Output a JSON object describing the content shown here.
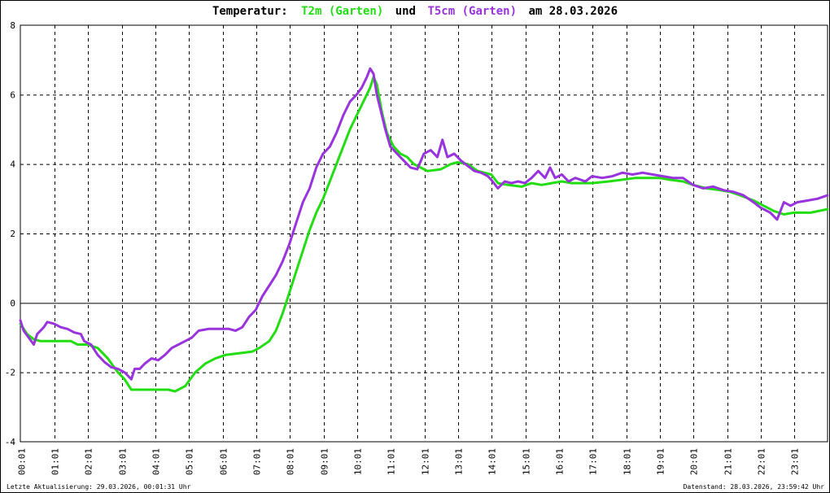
{
  "chart_data": {
    "type": "line",
    "title": {
      "prefix": "Temperatur:",
      "series1": "T2m (Garten)",
      "connector": "und",
      "series2": "T5cm (Garten)",
      "suffix": "am 28.03.2026"
    },
    "xlabel": "",
    "ylabel": "",
    "ylim": [
      -4,
      8
    ],
    "y_ticks": [
      -4,
      -2,
      0,
      2,
      4,
      6,
      8
    ],
    "x_range_hours": [
      0,
      24
    ],
    "x_ticks": [
      "00:01",
      "01:01",
      "02:01",
      "03:01",
      "04:01",
      "05:01",
      "06:01",
      "07:01",
      "08:01",
      "09:01",
      "10:01",
      "11:01",
      "12:01",
      "13:01",
      "14:01",
      "15:01",
      "16:01",
      "17:01",
      "18:01",
      "19:01",
      "20:01",
      "21:01",
      "22:01",
      "23:01"
    ],
    "grid": true,
    "colors": {
      "t2m": "#22dd11",
      "t5cm": "#9933dd",
      "grid": "#000000",
      "zero_line": "#000000"
    },
    "series": [
      {
        "name": "T2m (Garten)",
        "color": "#22dd11",
        "points": [
          [
            0.0,
            -0.6
          ],
          [
            0.2,
            -0.9
          ],
          [
            0.4,
            -1.05
          ],
          [
            0.6,
            -1.1
          ],
          [
            0.8,
            -1.1
          ],
          [
            1.0,
            -1.1
          ],
          [
            1.5,
            -1.1
          ],
          [
            1.7,
            -1.2
          ],
          [
            2.0,
            -1.2
          ],
          [
            2.3,
            -1.3
          ],
          [
            2.6,
            -1.6
          ],
          [
            2.9,
            -2.0
          ],
          [
            3.1,
            -2.2
          ],
          [
            3.3,
            -2.5
          ],
          [
            3.6,
            -2.5
          ],
          [
            4.0,
            -2.5
          ],
          [
            4.4,
            -2.5
          ],
          [
            4.6,
            -2.55
          ],
          [
            4.9,
            -2.4
          ],
          [
            5.2,
            -2.0
          ],
          [
            5.5,
            -1.75
          ],
          [
            5.8,
            -1.6
          ],
          [
            6.1,
            -1.5
          ],
          [
            6.5,
            -1.45
          ],
          [
            6.9,
            -1.4
          ],
          [
            7.1,
            -1.3
          ],
          [
            7.4,
            -1.1
          ],
          [
            7.6,
            -0.8
          ],
          [
            7.8,
            -0.3
          ],
          [
            8.0,
            0.3
          ],
          [
            8.2,
            0.9
          ],
          [
            8.4,
            1.5
          ],
          [
            8.6,
            2.1
          ],
          [
            8.8,
            2.6
          ],
          [
            9.0,
            3.0
          ],
          [
            9.2,
            3.5
          ],
          [
            9.4,
            4.0
          ],
          [
            9.6,
            4.5
          ],
          [
            9.8,
            5.0
          ],
          [
            10.0,
            5.4
          ],
          [
            10.2,
            5.8
          ],
          [
            10.4,
            6.2
          ],
          [
            10.5,
            6.5
          ],
          [
            10.6,
            6.3
          ],
          [
            10.75,
            5.5
          ],
          [
            10.9,
            4.9
          ],
          [
            11.1,
            4.5
          ],
          [
            11.3,
            4.3
          ],
          [
            11.5,
            4.2
          ],
          [
            11.7,
            4.0
          ],
          [
            11.9,
            3.9
          ],
          [
            12.1,
            3.8
          ],
          [
            12.5,
            3.85
          ],
          [
            12.8,
            4.0
          ],
          [
            13.0,
            4.05
          ],
          [
            13.3,
            4.0
          ],
          [
            13.6,
            3.8
          ],
          [
            13.8,
            3.75
          ],
          [
            14.0,
            3.7
          ],
          [
            14.2,
            3.45
          ],
          [
            14.5,
            3.4
          ],
          [
            14.9,
            3.35
          ],
          [
            15.2,
            3.45
          ],
          [
            15.5,
            3.4
          ],
          [
            15.8,
            3.45
          ],
          [
            16.1,
            3.5
          ],
          [
            16.4,
            3.45
          ],
          [
            17.0,
            3.45
          ],
          [
            17.5,
            3.5
          ],
          [
            17.9,
            3.55
          ],
          [
            18.3,
            3.6
          ],
          [
            18.7,
            3.6
          ],
          [
            19.0,
            3.6
          ],
          [
            19.3,
            3.55
          ],
          [
            19.7,
            3.5
          ],
          [
            20.0,
            3.4
          ],
          [
            20.4,
            3.3
          ],
          [
            20.8,
            3.25
          ],
          [
            21.1,
            3.2
          ],
          [
            21.4,
            3.1
          ],
          [
            21.8,
            2.95
          ],
          [
            22.1,
            2.8
          ],
          [
            22.4,
            2.65
          ],
          [
            22.7,
            2.55
          ],
          [
            23.0,
            2.6
          ],
          [
            23.5,
            2.6
          ],
          [
            24.0,
            2.7
          ]
        ]
      },
      {
        "name": "T5cm (Garten)",
        "color": "#9933dd",
        "points": [
          [
            0.0,
            -0.5
          ],
          [
            0.1,
            -0.8
          ],
          [
            0.25,
            -1.0
          ],
          [
            0.4,
            -1.2
          ],
          [
            0.5,
            -0.9
          ],
          [
            0.7,
            -0.7
          ],
          [
            0.8,
            -0.55
          ],
          [
            1.0,
            -0.6
          ],
          [
            1.2,
            -0.7
          ],
          [
            1.4,
            -0.75
          ],
          [
            1.6,
            -0.85
          ],
          [
            1.8,
            -0.9
          ],
          [
            1.9,
            -1.1
          ],
          [
            2.1,
            -1.2
          ],
          [
            2.3,
            -1.5
          ],
          [
            2.5,
            -1.7
          ],
          [
            2.7,
            -1.85
          ],
          [
            2.9,
            -1.9
          ],
          [
            3.1,
            -2.0
          ],
          [
            3.3,
            -2.2
          ],
          [
            3.4,
            -1.9
          ],
          [
            3.55,
            -1.9
          ],
          [
            3.7,
            -1.75
          ],
          [
            3.9,
            -1.6
          ],
          [
            4.1,
            -1.65
          ],
          [
            4.3,
            -1.5
          ],
          [
            4.5,
            -1.3
          ],
          [
            4.7,
            -1.2
          ],
          [
            4.9,
            -1.1
          ],
          [
            5.1,
            -1.0
          ],
          [
            5.3,
            -0.8
          ],
          [
            5.6,
            -0.75
          ],
          [
            5.9,
            -0.75
          ],
          [
            6.2,
            -0.75
          ],
          [
            6.4,
            -0.8
          ],
          [
            6.6,
            -0.7
          ],
          [
            6.8,
            -0.4
          ],
          [
            7.0,
            -0.2
          ],
          [
            7.2,
            0.2
          ],
          [
            7.4,
            0.5
          ],
          [
            7.6,
            0.8
          ],
          [
            7.8,
            1.2
          ],
          [
            8.0,
            1.7
          ],
          [
            8.2,
            2.3
          ],
          [
            8.4,
            2.9
          ],
          [
            8.6,
            3.3
          ],
          [
            8.8,
            3.9
          ],
          [
            9.0,
            4.3
          ],
          [
            9.2,
            4.5
          ],
          [
            9.4,
            4.9
          ],
          [
            9.6,
            5.4
          ],
          [
            9.8,
            5.8
          ],
          [
            10.0,
            6.0
          ],
          [
            10.15,
            6.2
          ],
          [
            10.3,
            6.5
          ],
          [
            10.4,
            6.75
          ],
          [
            10.5,
            6.6
          ],
          [
            10.6,
            6.0
          ],
          [
            10.7,
            5.6
          ],
          [
            10.85,
            5.0
          ],
          [
            11.0,
            4.5
          ],
          [
            11.2,
            4.3
          ],
          [
            11.4,
            4.1
          ],
          [
            11.6,
            3.9
          ],
          [
            11.8,
            3.85
          ],
          [
            12.0,
            4.3
          ],
          [
            12.2,
            4.4
          ],
          [
            12.4,
            4.2
          ],
          [
            12.55,
            4.7
          ],
          [
            12.7,
            4.2
          ],
          [
            12.9,
            4.3
          ],
          [
            13.1,
            4.1
          ],
          [
            13.3,
            3.95
          ],
          [
            13.5,
            3.8
          ],
          [
            13.7,
            3.75
          ],
          [
            13.9,
            3.65
          ],
          [
            14.0,
            3.55
          ],
          [
            14.2,
            3.3
          ],
          [
            14.4,
            3.5
          ],
          [
            14.6,
            3.45
          ],
          [
            14.8,
            3.5
          ],
          [
            15.0,
            3.45
          ],
          [
            15.2,
            3.6
          ],
          [
            15.4,
            3.8
          ],
          [
            15.6,
            3.6
          ],
          [
            15.75,
            3.9
          ],
          [
            15.9,
            3.6
          ],
          [
            16.1,
            3.7
          ],
          [
            16.3,
            3.5
          ],
          [
            16.5,
            3.6
          ],
          [
            16.8,
            3.5
          ],
          [
            17.0,
            3.65
          ],
          [
            17.3,
            3.6
          ],
          [
            17.6,
            3.65
          ],
          [
            17.9,
            3.75
          ],
          [
            18.2,
            3.7
          ],
          [
            18.5,
            3.75
          ],
          [
            18.8,
            3.7
          ],
          [
            19.1,
            3.65
          ],
          [
            19.4,
            3.6
          ],
          [
            19.7,
            3.6
          ],
          [
            20.0,
            3.4
          ],
          [
            20.3,
            3.3
          ],
          [
            20.6,
            3.35
          ],
          [
            20.9,
            3.25
          ],
          [
            21.2,
            3.2
          ],
          [
            21.5,
            3.1
          ],
          [
            21.8,
            2.9
          ],
          [
            22.0,
            2.75
          ],
          [
            22.3,
            2.6
          ],
          [
            22.5,
            2.4
          ],
          [
            22.7,
            2.9
          ],
          [
            22.9,
            2.8
          ],
          [
            23.1,
            2.9
          ],
          [
            23.4,
            2.95
          ],
          [
            23.7,
            3.0
          ],
          [
            24.0,
            3.1
          ]
        ]
      }
    ]
  },
  "footer": {
    "left": "Letzte Aktualisierung: 29.03.2026, 00:01:31 Uhr",
    "right": "Datenstand: 28.03.2026, 23:59:42 Uhr"
  }
}
